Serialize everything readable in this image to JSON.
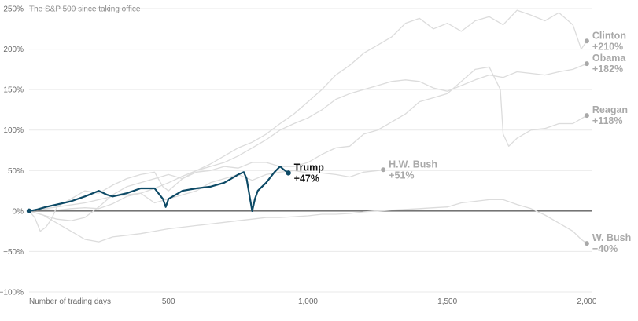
{
  "chart_data": {
    "type": "line",
    "subtitle": "The S&P 500 since taking office",
    "xlabel": "Number of trading days",
    "x_ticks": [
      {
        "value": 500,
        "label": "500"
      },
      {
        "value": 1000,
        "label": "1,000"
      },
      {
        "value": 1500,
        "label": "1,500"
      },
      {
        "value": 2000,
        "label": "2,000"
      }
    ],
    "y_ticks": [
      {
        "value": 250,
        "label": "250%"
      },
      {
        "value": 200,
        "label": "200%"
      },
      {
        "value": 150,
        "label": "150%"
      },
      {
        "value": 100,
        "label": "100%"
      },
      {
        "value": 50,
        "label": "50%"
      },
      {
        "value": 0,
        "label": "0%"
      },
      {
        "value": -50,
        "label": "−50%"
      },
      {
        "value": -100,
        "label": "−100%"
      }
    ],
    "xlim": [
      0,
      2020
    ],
    "ylim": [
      -100,
      250
    ],
    "zero_line": true,
    "colors": {
      "highlight": "#0d4a66",
      "context": "#dcdcdc",
      "context_label": "#a9a9a9",
      "zero": "#222222",
      "grid": "#e9e9e9"
    },
    "series": [
      {
        "name": "Clinton",
        "value_label": "+210%",
        "highlight": false,
        "points": [
          [
            0,
            0
          ],
          [
            50,
            2
          ],
          [
            100,
            1
          ],
          [
            150,
            3
          ],
          [
            200,
            4
          ],
          [
            250,
            3
          ],
          [
            300,
            9
          ],
          [
            350,
            18
          ],
          [
            400,
            22
          ],
          [
            450,
            28
          ],
          [
            500,
            35
          ],
          [
            550,
            43
          ],
          [
            600,
            50
          ],
          [
            650,
            58
          ],
          [
            700,
            68
          ],
          [
            750,
            78
          ],
          [
            800,
            85
          ],
          [
            850,
            95
          ],
          [
            900,
            108
          ],
          [
            950,
            120
          ],
          [
            1000,
            135
          ],
          [
            1050,
            150
          ],
          [
            1100,
            168
          ],
          [
            1150,
            180
          ],
          [
            1200,
            195
          ],
          [
            1250,
            205
          ],
          [
            1300,
            215
          ],
          [
            1350,
            232
          ],
          [
            1400,
            238
          ],
          [
            1450,
            225
          ],
          [
            1500,
            232
          ],
          [
            1550,
            222
          ],
          [
            1600,
            235
          ],
          [
            1650,
            240
          ],
          [
            1700,
            230
          ],
          [
            1750,
            248
          ],
          [
            1800,
            242
          ],
          [
            1850,
            235
          ],
          [
            1900,
            245
          ],
          [
            1950,
            230
          ],
          [
            1980,
            200
          ],
          [
            2000,
            210
          ]
        ]
      },
      {
        "name": "Obama",
        "value_label": "+182%",
        "highlight": false,
        "points": [
          [
            0,
            0
          ],
          [
            20,
            -8
          ],
          [
            40,
            -25
          ],
          [
            60,
            -20
          ],
          [
            80,
            -10
          ],
          [
            100,
            5
          ],
          [
            150,
            15
          ],
          [
            200,
            25
          ],
          [
            250,
            22
          ],
          [
            300,
            32
          ],
          [
            350,
            40
          ],
          [
            400,
            45
          ],
          [
            450,
            48
          ],
          [
            480,
            30
          ],
          [
            500,
            25
          ],
          [
            550,
            40
          ],
          [
            600,
            50
          ],
          [
            650,
            55
          ],
          [
            700,
            60
          ],
          [
            750,
            68
          ],
          [
            800,
            78
          ],
          [
            850,
            88
          ],
          [
            900,
            100
          ],
          [
            950,
            108
          ],
          [
            1000,
            115
          ],
          [
            1050,
            125
          ],
          [
            1100,
            138
          ],
          [
            1150,
            145
          ],
          [
            1200,
            150
          ],
          [
            1250,
            155
          ],
          [
            1300,
            160
          ],
          [
            1350,
            162
          ],
          [
            1400,
            160
          ],
          [
            1450,
            152
          ],
          [
            1500,
            148
          ],
          [
            1550,
            155
          ],
          [
            1600,
            162
          ],
          [
            1650,
            168
          ],
          [
            1700,
            165
          ],
          [
            1750,
            172
          ],
          [
            1800,
            170
          ],
          [
            1850,
            168
          ],
          [
            1900,
            172
          ],
          [
            1950,
            175
          ],
          [
            2000,
            182
          ]
        ]
      },
      {
        "name": "Reagan",
        "value_label": "+118%",
        "highlight": false,
        "points": [
          [
            0,
            0
          ],
          [
            50,
            -5
          ],
          [
            100,
            -10
          ],
          [
            150,
            -12
          ],
          [
            200,
            -8
          ],
          [
            250,
            5
          ],
          [
            300,
            20
          ],
          [
            350,
            30
          ],
          [
            400,
            35
          ],
          [
            450,
            40
          ],
          [
            500,
            45
          ],
          [
            550,
            40
          ],
          [
            600,
            48
          ],
          [
            650,
            50
          ],
          [
            700,
            55
          ],
          [
            750,
            53
          ],
          [
            800,
            60
          ],
          [
            850,
            60
          ],
          [
            900,
            55
          ],
          [
            950,
            55
          ],
          [
            1000,
            60
          ],
          [
            1050,
            70
          ],
          [
            1100,
            78
          ],
          [
            1150,
            80
          ],
          [
            1200,
            95
          ],
          [
            1250,
            100
          ],
          [
            1300,
            110
          ],
          [
            1350,
            120
          ],
          [
            1400,
            135
          ],
          [
            1450,
            140
          ],
          [
            1500,
            145
          ],
          [
            1550,
            160
          ],
          [
            1600,
            175
          ],
          [
            1650,
            178
          ],
          [
            1690,
            150
          ],
          [
            1700,
            95
          ],
          [
            1720,
            80
          ],
          [
            1750,
            90
          ],
          [
            1800,
            100
          ],
          [
            1850,
            102
          ],
          [
            1900,
            108
          ],
          [
            1950,
            108
          ],
          [
            2000,
            118
          ]
        ]
      },
      {
        "name": "H.W. Bush",
        "value_label": "+51%",
        "highlight": false,
        "points": [
          [
            0,
            0
          ],
          [
            100,
            5
          ],
          [
            200,
            10
          ],
          [
            300,
            18
          ],
          [
            400,
            22
          ],
          [
            450,
            10
          ],
          [
            500,
            15
          ],
          [
            600,
            25
          ],
          [
            650,
            35
          ],
          [
            700,
            40
          ],
          [
            750,
            45
          ],
          [
            800,
            38
          ],
          [
            850,
            45
          ],
          [
            900,
            48
          ],
          [
            950,
            50
          ],
          [
            1000,
            47
          ],
          [
            1050,
            47
          ],
          [
            1100,
            45
          ],
          [
            1150,
            42
          ],
          [
            1200,
            48
          ],
          [
            1250,
            50
          ],
          [
            1270,
            51
          ]
        ]
      },
      {
        "name": "W. Bush",
        "value_label": "−40%",
        "highlight": false,
        "points": [
          [
            0,
            0
          ],
          [
            50,
            -5
          ],
          [
            100,
            -15
          ],
          [
            150,
            -25
          ],
          [
            200,
            -35
          ],
          [
            250,
            -38
          ],
          [
            300,
            -32
          ],
          [
            350,
            -30
          ],
          [
            400,
            -28
          ],
          [
            450,
            -25
          ],
          [
            500,
            -22
          ],
          [
            550,
            -20
          ],
          [
            600,
            -18
          ],
          [
            650,
            -16
          ],
          [
            700,
            -14
          ],
          [
            750,
            -12
          ],
          [
            800,
            -10
          ],
          [
            850,
            -8
          ],
          [
            900,
            -8
          ],
          [
            950,
            -7
          ],
          [
            1000,
            -6
          ],
          [
            1050,
            -4
          ],
          [
            1100,
            -4
          ],
          [
            1150,
            -3
          ],
          [
            1200,
            -1
          ],
          [
            1250,
            0
          ],
          [
            1300,
            1
          ],
          [
            1350,
            2
          ],
          [
            1400,
            3
          ],
          [
            1450,
            4
          ],
          [
            1500,
            5
          ],
          [
            1550,
            10
          ],
          [
            1600,
            12
          ],
          [
            1650,
            14
          ],
          [
            1700,
            14
          ],
          [
            1750,
            8
          ],
          [
            1800,
            3
          ],
          [
            1850,
            -5
          ],
          [
            1900,
            -15
          ],
          [
            1950,
            -25
          ],
          [
            1980,
            -35
          ],
          [
            2000,
            -40
          ]
        ]
      },
      {
        "name": "Trump",
        "value_label": "+47%",
        "highlight": true,
        "points": [
          [
            0,
            0
          ],
          [
            30,
            2
          ],
          [
            60,
            5
          ],
          [
            100,
            8
          ],
          [
            150,
            12
          ],
          [
            200,
            18
          ],
          [
            250,
            25
          ],
          [
            280,
            20
          ],
          [
            300,
            18
          ],
          [
            350,
            22
          ],
          [
            400,
            28
          ],
          [
            450,
            28
          ],
          [
            480,
            15
          ],
          [
            490,
            5
          ],
          [
            500,
            15
          ],
          [
            550,
            25
          ],
          [
            600,
            28
          ],
          [
            650,
            30
          ],
          [
            700,
            35
          ],
          [
            750,
            45
          ],
          [
            770,
            48
          ],
          [
            780,
            40
          ],
          [
            790,
            20
          ],
          [
            800,
            0
          ],
          [
            810,
            15
          ],
          [
            820,
            25
          ],
          [
            850,
            35
          ],
          [
            880,
            48
          ],
          [
            900,
            55
          ],
          [
            910,
            52
          ],
          [
            930,
            47
          ]
        ]
      }
    ]
  }
}
